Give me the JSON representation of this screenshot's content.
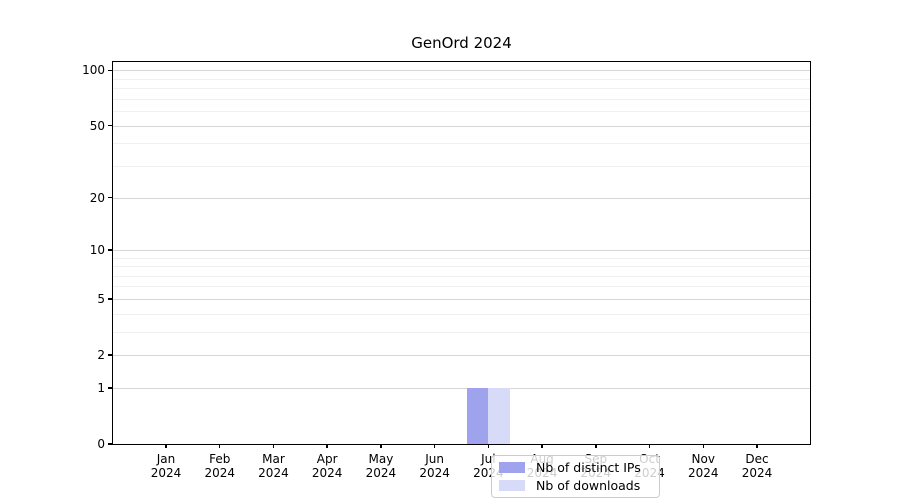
{
  "title": "GenOrd 2024",
  "legend": {
    "items": [
      {
        "label": "Nb of distinct IPs",
        "color": "#9fa3ee"
      },
      {
        "label": "Nb of downloads",
        "color": "#d8dbf8"
      }
    ]
  },
  "chart_data": {
    "type": "bar",
    "title": "GenOrd 2024",
    "categories": [
      "Jan 2024",
      "Feb 2024",
      "Mar 2024",
      "Apr 2024",
      "May 2024",
      "Jun 2024",
      "Jul 2024",
      "Aug 2024",
      "Sep 2024",
      "Oct 2024",
      "Nov 2024",
      "Dec 2024"
    ],
    "series": [
      {
        "name": "Nb of distinct IPs",
        "color": "#9fa3ee",
        "values": [
          0,
          0,
          0,
          0,
          0,
          0,
          1,
          0,
          0,
          0,
          0,
          0
        ]
      },
      {
        "name": "Nb of downloads",
        "color": "#d8dbf8",
        "values": [
          0,
          0,
          0,
          0,
          0,
          0,
          1,
          0,
          0,
          0,
          0,
          0
        ]
      }
    ],
    "xlabel": "",
    "ylabel": "",
    "yscale": "log1p",
    "ylim": [
      0,
      111
    ],
    "yticks": [
      0,
      1,
      2,
      5,
      10,
      20,
      50,
      100
    ],
    "minor_yticks": [
      3,
      4,
      6,
      7,
      8,
      9,
      30,
      40,
      60,
      70,
      80,
      90
    ],
    "grid": "horizontal",
    "grid_major_color": "#d6d6d6",
    "grid_minor_color": "#f0f0f0",
    "legend_position": "inside-bottom-center"
  }
}
